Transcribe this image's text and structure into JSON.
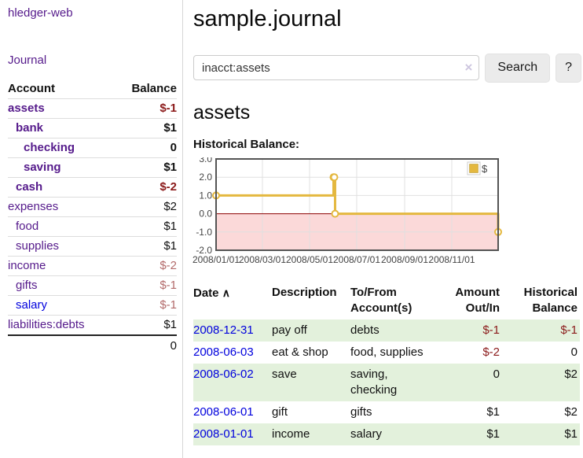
{
  "app": {
    "brand": "hledger-web",
    "title": "sample.journal"
  },
  "sidebar": {
    "nav_journal": "Journal",
    "accounts_header": {
      "account": "Account",
      "balance": "Balance"
    },
    "accounts": [
      {
        "name": "assets",
        "balance": "$-1",
        "depth": 0,
        "bold": true
      },
      {
        "name": "bank",
        "balance": "$1",
        "depth": 1,
        "bold": true
      },
      {
        "name": "checking",
        "balance": "0",
        "depth": 2,
        "bold": true
      },
      {
        "name": "saving",
        "balance": "$1",
        "depth": 2,
        "bold": true
      },
      {
        "name": "cash",
        "balance": "$-2",
        "depth": 1,
        "bold": true
      },
      {
        "name": "expenses",
        "balance": "$2",
        "depth": 0,
        "bold": false
      },
      {
        "name": "food",
        "balance": "$1",
        "depth": 1,
        "bold": false
      },
      {
        "name": "supplies",
        "balance": "$1",
        "depth": 1,
        "bold": false
      },
      {
        "name": "income",
        "balance": "$-2",
        "depth": 0,
        "bold": false
      },
      {
        "name": "gifts",
        "balance": "$-1",
        "depth": 1,
        "bold": false
      },
      {
        "name": "salary",
        "balance": "$-1",
        "depth": 1,
        "bold": false,
        "blue": true
      },
      {
        "name": "liabilities:debts",
        "balance": "$1",
        "depth": 0,
        "bold": false
      }
    ],
    "total": "0"
  },
  "search": {
    "value": "inacct:assets",
    "clear_icon": "×",
    "search_label": "Search",
    "help_label": "?"
  },
  "main": {
    "account_title": "assets",
    "chart_label": "Historical Balance:"
  },
  "chart_data": {
    "type": "line",
    "title": "Historical Balance:",
    "step": true,
    "series": [
      {
        "name": "$",
        "color": "#e4b83f",
        "points": [
          [
            "2008-01-01",
            1
          ],
          [
            "2008-06-01",
            2
          ],
          [
            "2008-06-02",
            2
          ],
          [
            "2008-06-03",
            0
          ],
          [
            "2008-12-31",
            -1
          ]
        ]
      }
    ],
    "x_range": [
      "2008-01-01",
      "2008-12-31"
    ],
    "x_ticks": [
      "2008/01/01",
      "2008/03/01",
      "2008/05/01",
      "2008/07/01",
      "2008/09/01",
      "2008/11/01"
    ],
    "y_ticks": [
      3.0,
      2.0,
      1.0,
      0.0,
      -1.0,
      -2.0
    ],
    "ylim": [
      -2,
      3
    ],
    "grid": true,
    "legend": {
      "label": "$",
      "position": "top-right"
    },
    "negative_region_fill": "#fbd9d9",
    "zero_line_color": "#8b0000"
  },
  "register": {
    "headers": {
      "date": "Date",
      "sort_icon": "∧",
      "description": "Description",
      "tofrom": "To/From Account(s)",
      "amount": "Amount Out/In",
      "balance": "Historical Balance"
    },
    "rows": [
      {
        "date": "2008-12-31",
        "description": "pay off",
        "accounts": "debts",
        "amount": "$-1",
        "balance": "$-1"
      },
      {
        "date": "2008-06-03",
        "description": "eat & shop",
        "accounts": "food, supplies",
        "amount": "$-2",
        "balance": "0"
      },
      {
        "date": "2008-06-02",
        "description": "save",
        "accounts": "saving,\nchecking",
        "amount": "0",
        "balance": "$2"
      },
      {
        "date": "2008-06-01",
        "description": "gift",
        "accounts": "gifts",
        "amount": "$1",
        "balance": "$2"
      },
      {
        "date": "2008-01-01",
        "description": "income",
        "accounts": "salary",
        "amount": "$1",
        "balance": "$1"
      }
    ]
  },
  "colors": {
    "purple": "#551a8b",
    "blue": "#0000dd",
    "darkred": "#8b1a1a",
    "softred": "#b36b6b",
    "rowgreen": "#e3f1dc",
    "grid": "#e0e0e0",
    "chartborder": "#545454",
    "axistext": "#444444"
  }
}
